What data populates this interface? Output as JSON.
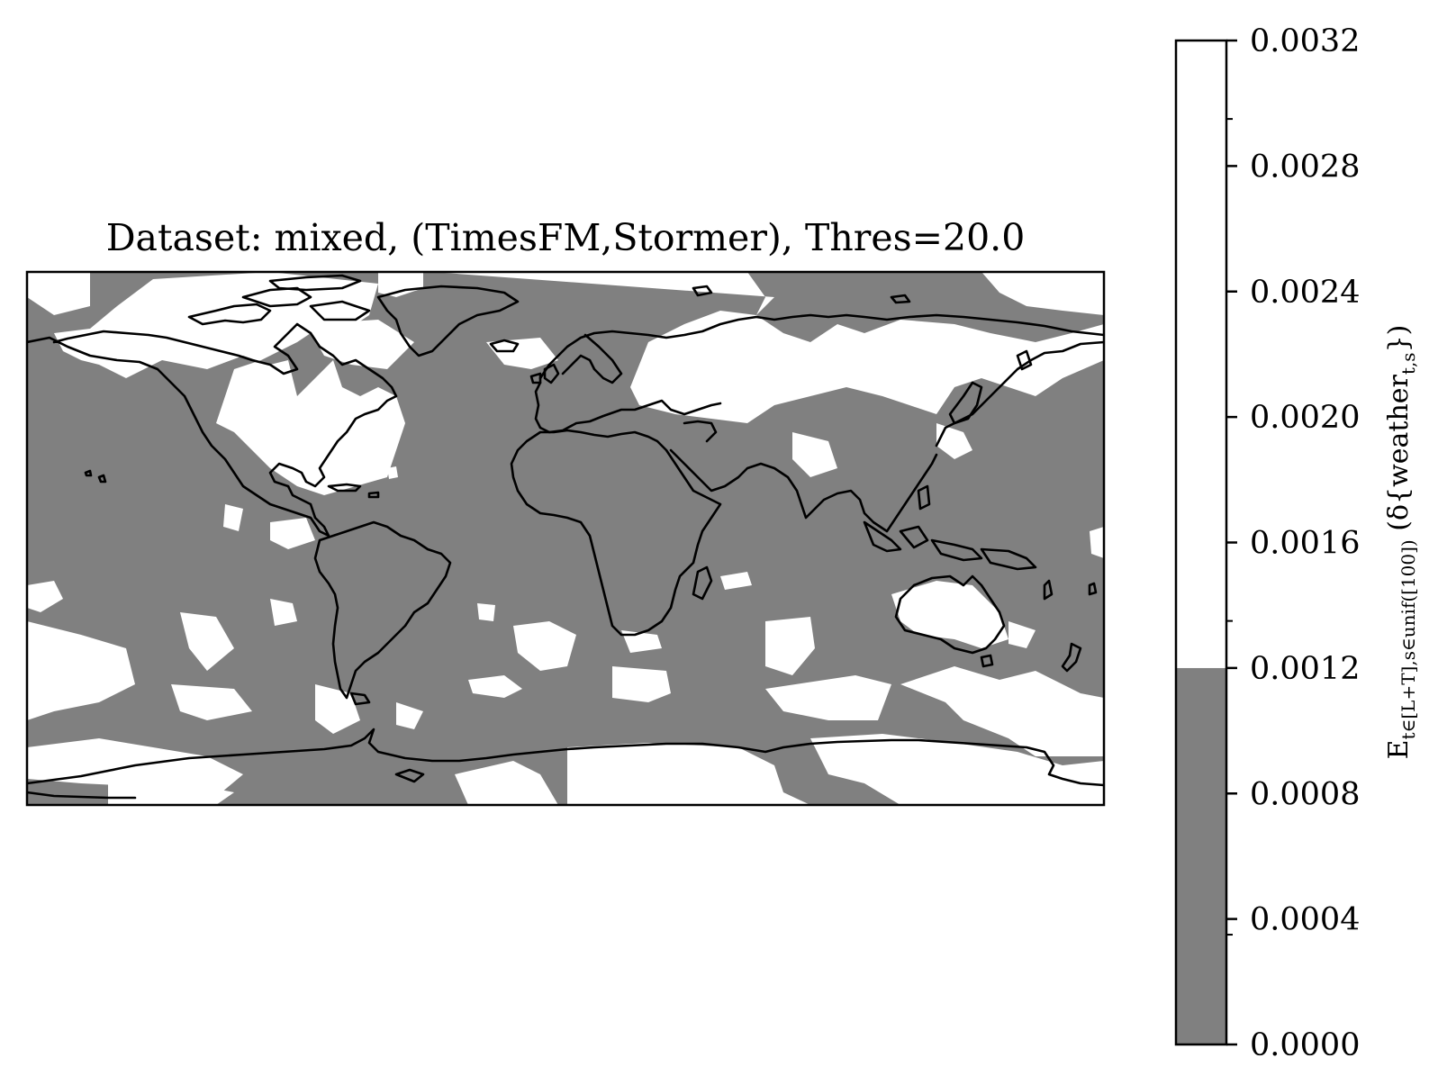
{
  "map": {
    "title": "Dataset: mixed, (TimesFM,Stormer), Thres=20.0",
    "projection": "plate-carree",
    "extent": {
      "lon": [
        -180,
        180
      ],
      "lat": [
        -90,
        90
      ]
    },
    "coastlines": true
  },
  "colorbar": {
    "ticks": [
      "0.0000",
      "0.0004",
      "0.0008",
      "0.0012",
      "0.0016",
      "0.0020",
      "0.0024",
      "0.0028",
      "0.0032"
    ],
    "range": [
      0.0,
      0.0032
    ],
    "label_main": "E",
    "label_sub": "t∈[L+T],s∈unif([100])",
    "label_rest": " (δ{weather",
    "label_rest_sub": "t,s",
    "label_end": "})",
    "levels": [
      {
        "from": 0.0,
        "to": 0.0012,
        "color": "#808080"
      },
      {
        "from": 0.0012,
        "to": 0.0032,
        "color": "#ffffff"
      }
    ]
  },
  "colors": {
    "low": "#808080",
    "high": "#ffffff",
    "coast": "#000000"
  }
}
